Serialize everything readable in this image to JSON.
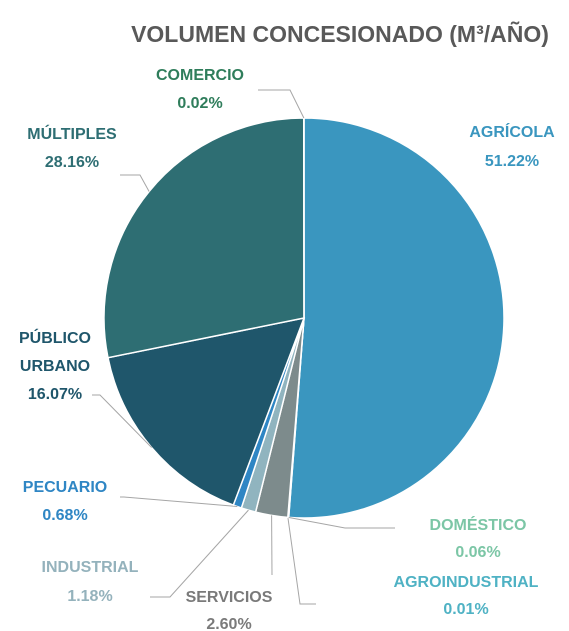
{
  "chart_data": {
    "type": "pie",
    "title": "VOLUMEN CONCESIONADO (M³/AÑO)",
    "categories": [
      "AGRÍCOLA",
      "DOMÉSTICO",
      "AGROINDUSTRIAL",
      "SERVICIOS",
      "INDUSTRIAL",
      "PECUARIO",
      "PÚBLICO URBANO",
      "MÚLTIPLES",
      "COMERCIO"
    ],
    "values": [
      51.22,
      0.06,
      0.01,
      2.6,
      1.18,
      0.68,
      16.07,
      28.16,
      0.02
    ],
    "value_labels": [
      "51.22%",
      "0.06%",
      "0.01%",
      "2.60%",
      "1.18%",
      "0.68%",
      "16.07%",
      "28.16%",
      "0.02%"
    ],
    "colors": [
      "#3a96bf",
      "#7cc6a6",
      "#52b5c8",
      "#7d8b8c",
      "#90b4bf",
      "#2f86c4",
      "#1f566b",
      "#2e6e73",
      "#2f8a64"
    ],
    "label_colors": [
      "#3a96bf",
      "#7cc6a6",
      "#4fb2c4",
      "#7a7a7a",
      "#94b2bc",
      "#2f86c4",
      "#1f566b",
      "#2e6e73",
      "#2f7d5b"
    ]
  }
}
